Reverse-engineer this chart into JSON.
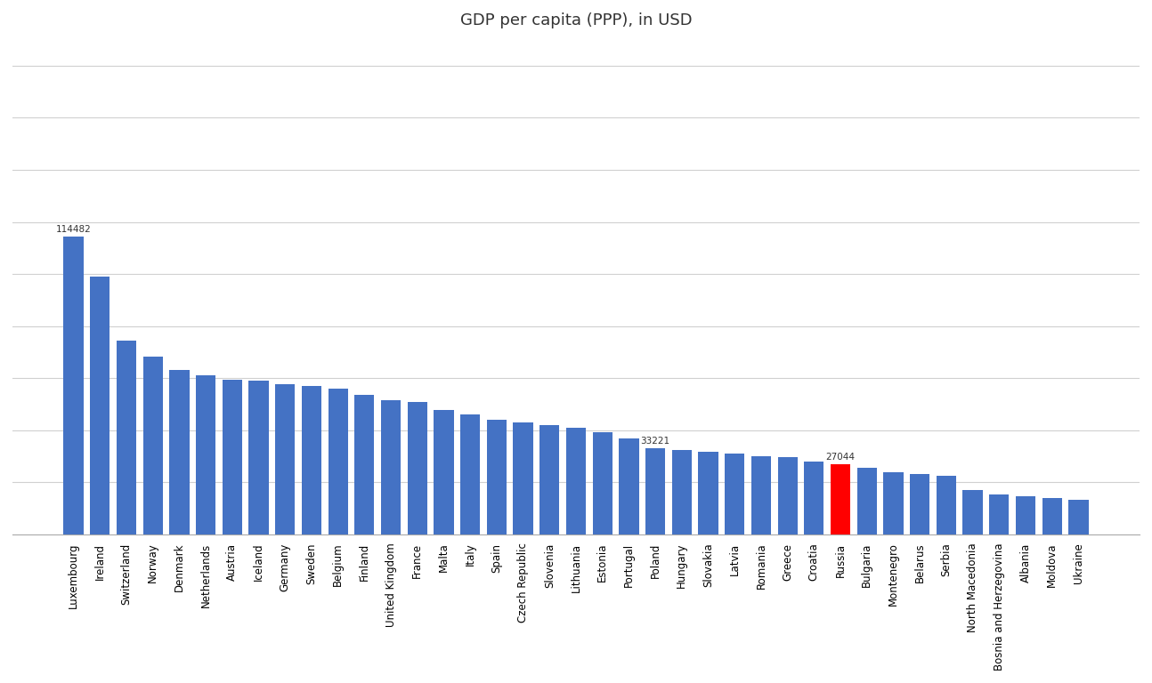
{
  "title": "GDP per capita (PPP), in USD",
  "title_fontsize": 13,
  "countries": [
    "Luxembourg",
    "Ireland",
    "Switzerland",
    "Norway",
    "Denmark",
    "Netherlands",
    "Austria",
    "Iceland",
    "Germany",
    "Sweden",
    "Belgium",
    "Finland",
    "United Kingdom",
    "France",
    "Malta",
    "Italy",
    "Spain",
    "Czech Republic",
    "Slovenia",
    "Lithuania",
    "Estonia",
    "Portugal",
    "Poland",
    "Hungary",
    "Slovakia",
    "Latvia",
    "Romania",
    "Greece",
    "Croatia",
    "Russia",
    "Bulgaria",
    "Montenegro",
    "Belarus",
    "Serbia",
    "North Macedonia",
    "Bosnia and Herzegovina",
    "Albania",
    "Moldova",
    "Ukraine"
  ],
  "values": [
    114482,
    99013,
    74437,
    68232,
    63000,
    61000,
    59500,
    59000,
    57800,
    57000,
    55900,
    53600,
    51700,
    50700,
    47900,
    46000,
    44100,
    42900,
    42000,
    40800,
    39200,
    36800,
    33221,
    32400,
    31600,
    31000,
    30000,
    29800,
    28100,
    27044,
    25500,
    23800,
    23100,
    22400,
    16900,
    15500,
    14800,
    13800,
    13400
  ],
  "bar_color_default": "#4472C4",
  "bar_color_highlight": "#FF0000",
  "highlight_country": "Russia",
  "annotate_countries": [
    "Luxembourg",
    "Poland",
    "Russia"
  ],
  "annotate_values": [
    114482,
    33221,
    27044
  ],
  "background_color": "#FFFFFF",
  "grid_color": "#D0D0D0",
  "ylim": [
    0,
    190000
  ],
  "ytick_positions": [
    0,
    20000,
    40000,
    60000,
    80000,
    100000,
    120000,
    140000,
    160000,
    180000
  ]
}
